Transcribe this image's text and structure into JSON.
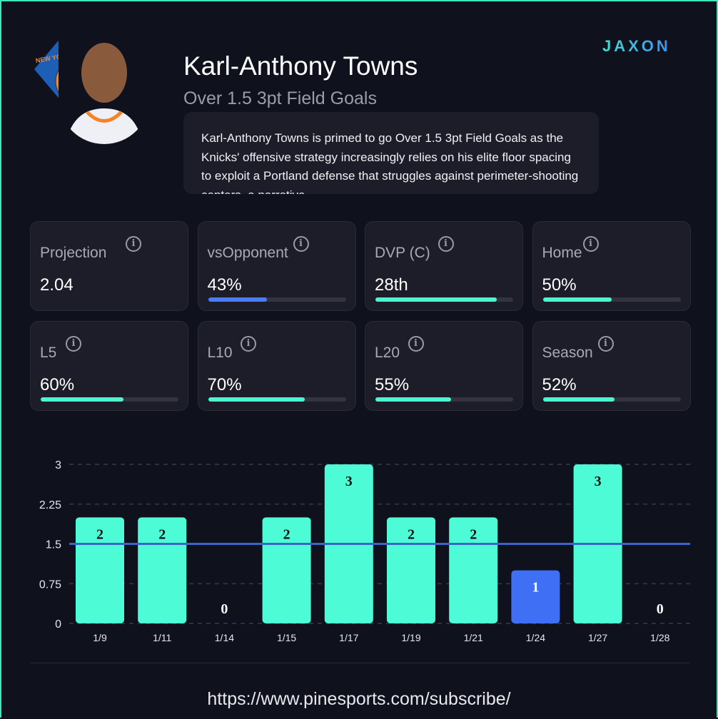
{
  "header": {
    "player": "Karl-Anthony Towns",
    "prop": "Over 1.5 3pt Field Goals",
    "team_logo_text": "NEW YORK KNICKS",
    "brand": "JAXON",
    "description": "Karl-Anthony Towns is primed to go Over 1.5 3pt Field Goals as the Knicks' offensive strategy increasingly relies on his elite floor spacing to exploit a Portland defense that struggles against perimeter-shooting centers, a narrative"
  },
  "cards": [
    {
      "label": "Projection",
      "value": "2.04"
    },
    {
      "label": "vsOpponent",
      "value": "43%",
      "fill": 43,
      "color": "#4a7cf7"
    },
    {
      "label": "DVP (C)",
      "value": "28th",
      "fill": 88,
      "color": "#4cf5cf"
    },
    {
      "label": "Home",
      "value": "50%",
      "fill": 50,
      "color": "#4cf5cf"
    },
    {
      "label": "L5",
      "value": "60%",
      "fill": 60,
      "color": "#4cf5cf"
    },
    {
      "label": "L10",
      "value": "70%",
      "fill": 70,
      "color": "#4cf5cf"
    },
    {
      "label": "L20",
      "value": "55%",
      "fill": 55,
      "color": "#4cf5cf"
    },
    {
      "label": "Season",
      "value": "52%",
      "fill": 52,
      "color": "#4cf5cf"
    }
  ],
  "chart_data": {
    "type": "bar",
    "categories": [
      "1/9",
      "1/11",
      "1/14",
      "1/15",
      "1/17",
      "1/19",
      "1/21",
      "1/24",
      "1/27",
      "1/28"
    ],
    "values": [
      2,
      2,
      0,
      2,
      3,
      2,
      2,
      1,
      3,
      0
    ],
    "line": 1.5,
    "ylim": [
      0,
      3
    ],
    "yticks": [
      "0",
      "0.75",
      "1.5",
      "2.25",
      "3"
    ],
    "colors": {
      "over": "#4dfcd6",
      "under": "#3f6ff5",
      "line": "#3d64c8"
    },
    "grid": true
  },
  "footer": {
    "url": "https://www.pinesports.com/subscribe/"
  }
}
